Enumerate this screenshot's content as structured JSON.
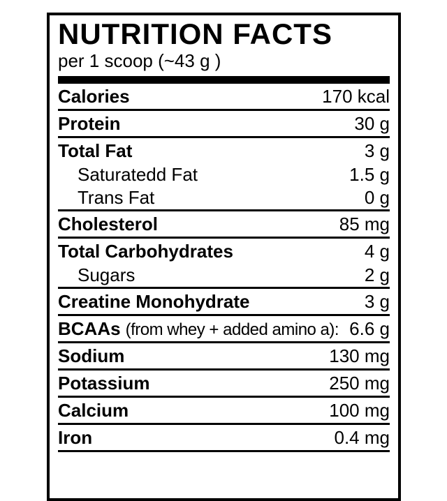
{
  "label": {
    "title": "NUTRITION FACTS",
    "serving": "per 1 scoop (~43 g )",
    "colors": {
      "ink": "#000000",
      "background": "#ffffff"
    },
    "rows": [
      {
        "name": "Calories",
        "value": "170 kcal"
      },
      {
        "name": "Protein",
        "value": "30 g"
      },
      {
        "name": "Total Fat",
        "value": "3 g"
      },
      {
        "name": "Saturatedd Fat",
        "value": "1.5 g"
      },
      {
        "name": "Trans Fat",
        "value": "0 g"
      },
      {
        "name": "Cholesterol",
        "value": "85 mg"
      },
      {
        "name": "Total Carbohydrates",
        "value": "4 g"
      },
      {
        "name": "Sugars",
        "value": "2 g"
      },
      {
        "name": "Creatine Monohydrate",
        "value": "3 g"
      },
      {
        "name": "BCAAs",
        "note": "(from whey + added amino a):",
        "value": "6.6 g"
      },
      {
        "name": "Sodium",
        "value": "130 mg"
      },
      {
        "name": "Potassium",
        "value": "250 mg"
      },
      {
        "name": "Calcium",
        "value": "100 mg"
      },
      {
        "name": "Iron",
        "value": "0.4 mg"
      }
    ]
  }
}
